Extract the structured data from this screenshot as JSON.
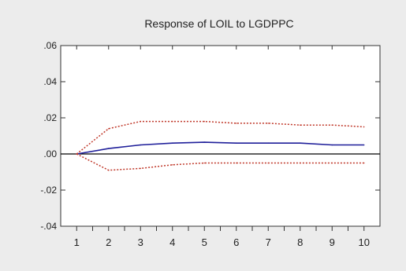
{
  "chart_data": {
    "type": "line",
    "title": "Response of LOIL to LGDPPC",
    "xlabel": "",
    "ylabel": "",
    "x": [
      1,
      2,
      3,
      4,
      5,
      6,
      7,
      8,
      9,
      10
    ],
    "xlim": [
      0.5,
      10.5
    ],
    "ylim": [
      -0.04,
      0.06
    ],
    "y_ticks": [
      -0.04,
      -0.02,
      0.0,
      0.02,
      0.04,
      0.06
    ],
    "y_tick_labels": [
      "-.04",
      "-.02",
      ".00",
      ".02",
      ".04",
      ".06"
    ],
    "x_tick_labels": [
      "1",
      "2",
      "3",
      "4",
      "5",
      "6",
      "7",
      "8",
      "9",
      "10"
    ],
    "zero_line": true,
    "grid": false,
    "series": [
      {
        "style": "solid",
        "color": "#1f1f9a",
        "values": [
          0.0,
          0.003,
          0.005,
          0.006,
          0.0065,
          0.006,
          0.006,
          0.006,
          0.005,
          0.005
        ]
      },
      {
        "style": "dotted",
        "color": "#c0392b",
        "values": [
          0.0,
          0.014,
          0.018,
          0.018,
          0.018,
          0.017,
          0.017,
          0.016,
          0.016,
          0.015
        ]
      },
      {
        "style": "dotted",
        "color": "#c0392b",
        "values": [
          0.0,
          -0.009,
          -0.008,
          -0.006,
          -0.005,
          -0.005,
          -0.005,
          -0.005,
          -0.005,
          -0.005
        ]
      }
    ]
  }
}
